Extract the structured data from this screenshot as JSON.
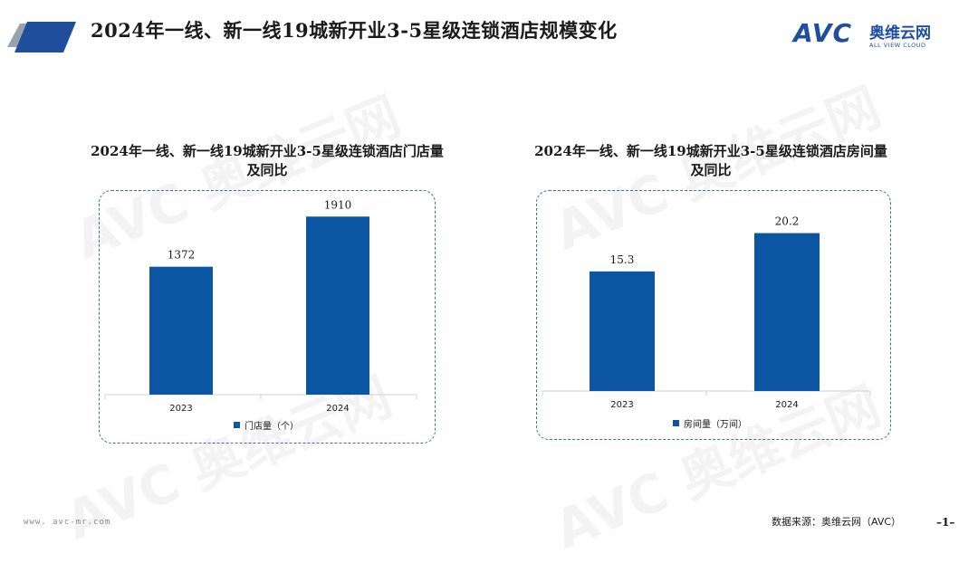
{
  "header": {
    "title": "2024年一线、新一线19城新开业3-5星级连锁酒店规模变化",
    "logo": {
      "text": "AVC",
      "cn": "奥维云网",
      "en": "ALL VIEW CLOUD"
    }
  },
  "footer": {
    "url": "www. avc-mr.com",
    "source": "数据来源：奥维云网（AVC）",
    "page": "–1–"
  },
  "colors": {
    "bar": "#0b55a3",
    "accent": "#1f4e9c",
    "panel_border": "#3a6fb0"
  },
  "chart_data": [
    {
      "type": "bar",
      "title_line1": "2024年一线、新一线19城新开业3-5星级连锁酒店门店量",
      "title_line2": "及同比",
      "categories": [
        "2023",
        "2024"
      ],
      "series": [
        {
          "name": "门店量（个）",
          "values": [
            1372,
            1910
          ]
        }
      ],
      "value_labels": [
        "1372",
        "1910"
      ],
      "ylim": [
        0,
        2000
      ],
      "legend": "bottom-left",
      "grid": false
    },
    {
      "type": "bar",
      "title_line1": "2024年一线、新一线19城新开业3-5星级连锁酒店房间量",
      "title_line2": "及同比",
      "categories": [
        "2023",
        "2024"
      ],
      "series": [
        {
          "name": "房间量（万间）",
          "values": [
            15.3,
            20.2
          ]
        }
      ],
      "value_labels": [
        "15.3",
        "20.2"
      ],
      "ylim": [
        0,
        22
      ],
      "legend": "bottom-left",
      "grid": false
    }
  ]
}
